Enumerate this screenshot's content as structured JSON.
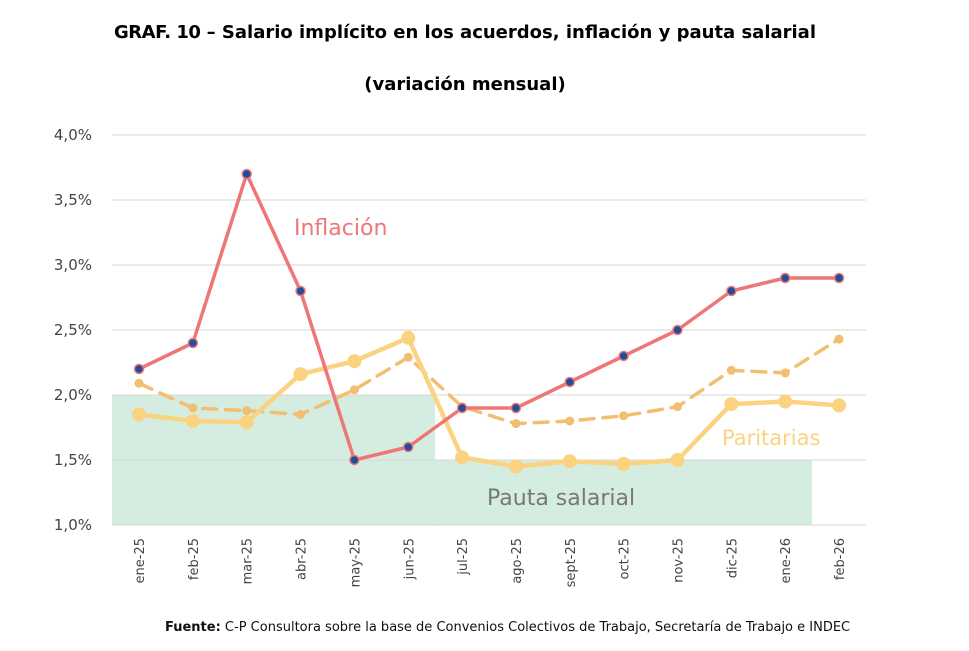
{
  "header": {
    "title_prefix": "GRAF. 10",
    "title_rest": " – Salario implícito en los acuerdos, inflación y pauta salarial",
    "subtitle": "(variación mensual)"
  },
  "source": {
    "label": "Fuente:",
    "text": " C-P Consultora sobre la base de Convenios Colectivos de Trabajo, Secretaría de Trabajo e INDEC"
  },
  "chart_data": {
    "type": "line",
    "title": "GRAF. 10 – Salario implícito en los acuerdos, inflación y pauta salarial",
    "subtitle": "(variación mensual)",
    "xlabel": "",
    "ylabel": "",
    "ylim": [
      1.0,
      4.0
    ],
    "grid": true,
    "categories": [
      "ene-25",
      "feb-25",
      "mar-25",
      "abr-25",
      "may-25",
      "jun-25",
      "jul-25",
      "ago-25",
      "sept-25",
      "oct-25",
      "nov-25",
      "dic-25",
      "ene-26",
      "feb-26"
    ],
    "yticks": [
      "1,0%",
      "1,5%",
      "2,0%",
      "2,5%",
      "3,0%",
      "3,5%",
      "4,0%"
    ],
    "series": [
      {
        "name": "Inflación",
        "style": "solid-line-dots",
        "color": "#ee7677",
        "marker_color": "#1f4e9c",
        "values": [
          2.2,
          2.4,
          3.7,
          2.8,
          1.5,
          1.6,
          1.9,
          1.9,
          2.1,
          2.3,
          2.5,
          2.8,
          2.9,
          2.9
        ]
      },
      {
        "name": "Paritarias",
        "style": "solid-line-large-markers",
        "color": "#fbd380",
        "values": [
          1.85,
          1.8,
          1.79,
          2.16,
          2.26,
          2.44,
          1.52,
          1.45,
          1.49,
          1.47,
          1.5,
          1.93,
          1.95,
          1.92
        ]
      },
      {
        "name": "",
        "style": "dashed-line",
        "color": "#f2bf72",
        "values": [
          2.09,
          1.9,
          1.88,
          1.85,
          2.04,
          2.29,
          1.91,
          1.78,
          1.8,
          1.84,
          1.91,
          2.19,
          2.17,
          2.43
        ]
      }
    ],
    "area": {
      "name": "Pauta salarial",
      "color": "#d5ede0",
      "segments": [
        {
          "from": "ene-25",
          "to": "jun-25",
          "value": 2.0
        },
        {
          "from": "jul-25",
          "to": "ene-26",
          "value": 1.5
        }
      ]
    }
  }
}
